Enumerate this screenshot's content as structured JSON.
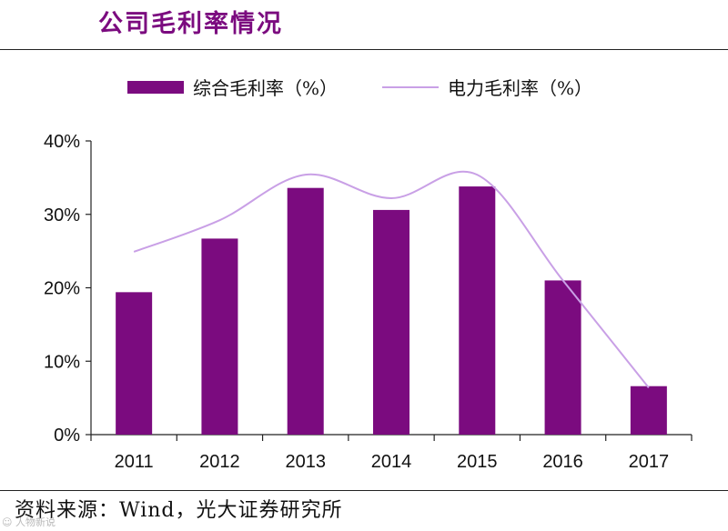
{
  "header": {
    "title": "公司毛利率情况"
  },
  "footer": {
    "source": "资料来源：Wind，光大证券研究所",
    "watermark": "☺ 人物新说"
  },
  "chart_data": {
    "type": "bar",
    "categories": [
      "2011",
      "2012",
      "2013",
      "2014",
      "2015",
      "2016",
      "2017"
    ],
    "series": [
      {
        "name": "综合毛利率（%）",
        "kind": "bar",
        "color": "#7b0b7f",
        "values": [
          19.4,
          26.7,
          33.6,
          30.6,
          33.8,
          21.0,
          6.6
        ]
      },
      {
        "name": "电力毛利率（%）",
        "kind": "line",
        "color": "#c9a0e6",
        "values": [
          24.9,
          29.2,
          35.4,
          32.2,
          35.4,
          21.0,
          6.4
        ]
      }
    ],
    "yticks": [
      "0%",
      "10%",
      "20%",
      "30%",
      "40%"
    ],
    "ylim": [
      0,
      40
    ],
    "title": "公司毛利率情况",
    "xlabel": "",
    "ylabel": "",
    "legend": "top"
  }
}
